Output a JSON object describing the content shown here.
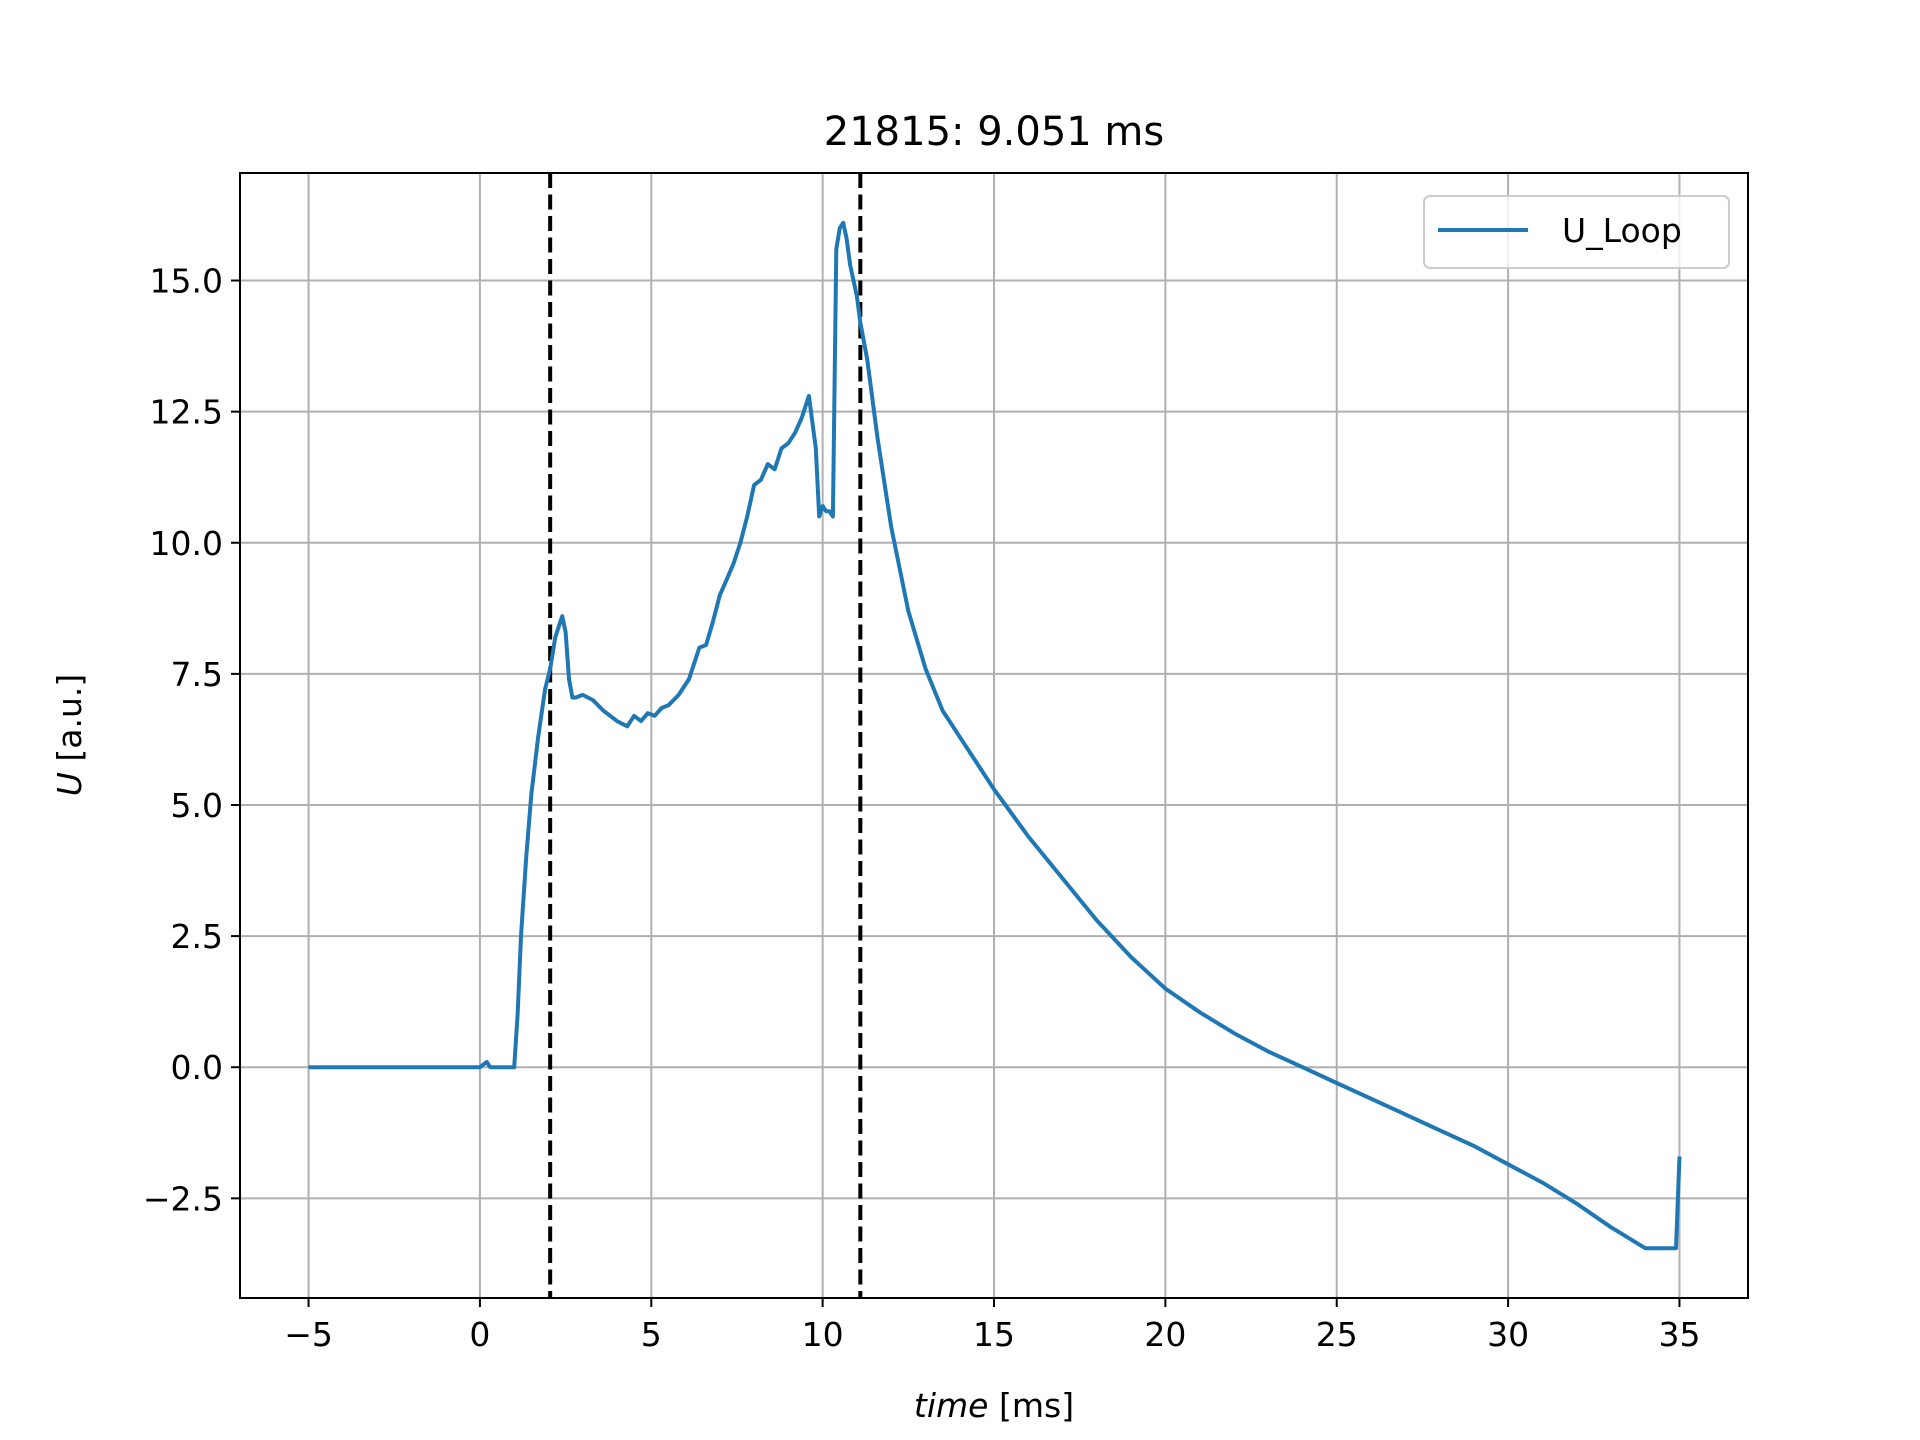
{
  "chart_data": {
    "type": "line",
    "title": "21815: 9.051 ms",
    "xlabel_italic": "time",
    "xlabel_unit": " [ms]",
    "ylabel_italic": "U",
    "ylabel_unit": " [a.u.]",
    "xlim": [
      -7,
      37
    ],
    "ylim": [
      -4.4,
      17.05
    ],
    "xticks": [
      -5,
      0,
      5,
      10,
      15,
      20,
      25,
      30,
      35
    ],
    "xtick_labels": [
      "−5",
      "0",
      "5",
      "10",
      "15",
      "20",
      "25",
      "30",
      "35"
    ],
    "yticks": [
      -2.5,
      0.0,
      2.5,
      5.0,
      7.5,
      10.0,
      12.5,
      15.0
    ],
    "ytick_labels": [
      "−2.5",
      "0.0",
      "2.5",
      "5.0",
      "7.5",
      "10.0",
      "12.5",
      "15.0"
    ],
    "grid": true,
    "legend_position": "top-right",
    "vlines": [
      2.05,
      11.1
    ],
    "series": [
      {
        "name": "U_Loop",
        "color": "#1f77b4",
        "x": [
          -5,
          -1,
          0,
          0.1,
          0.2,
          0.3,
          1.0,
          1.1,
          1.2,
          1.35,
          1.5,
          1.7,
          1.9,
          2.05,
          2.2,
          2.4,
          2.5,
          2.6,
          2.7,
          2.8,
          3.0,
          3.3,
          3.6,
          4.0,
          4.3,
          4.5,
          4.7,
          4.9,
          5.1,
          5.3,
          5.5,
          5.8,
          6.1,
          6.4,
          6.6,
          6.8,
          7.0,
          7.2,
          7.4,
          7.6,
          7.8,
          8.0,
          8.2,
          8.4,
          8.6,
          8.8,
          9.0,
          9.2,
          9.4,
          9.6,
          9.8,
          9.9,
          10.0,
          10.1,
          10.2,
          10.3,
          10.4,
          10.5,
          10.6,
          10.7,
          10.8,
          10.9,
          11.0,
          11.1,
          11.3,
          11.6,
          12.0,
          12.5,
          13.0,
          13.5,
          14.0,
          15.0,
          16.0,
          17.0,
          18.0,
          19.0,
          20.0,
          21.0,
          22.0,
          23.0,
          24.0,
          25.0,
          26.0,
          27.0,
          28.0,
          29.0,
          30.0,
          31.0,
          32.0,
          33.0,
          34.0,
          34.9,
          35.0
        ],
        "y": [
          0,
          0,
          0,
          0.05,
          0.1,
          0,
          0,
          1.0,
          2.5,
          4.0,
          5.2,
          6.3,
          7.2,
          7.6,
          8.2,
          8.6,
          8.3,
          7.4,
          7.05,
          7.05,
          7.1,
          7.0,
          6.8,
          6.6,
          6.5,
          6.7,
          6.6,
          6.75,
          6.7,
          6.85,
          6.9,
          7.1,
          7.4,
          8.0,
          8.05,
          8.5,
          9.0,
          9.3,
          9.6,
          10.0,
          10.5,
          11.1,
          11.2,
          11.5,
          11.4,
          11.8,
          11.9,
          12.1,
          12.4,
          12.8,
          11.8,
          10.5,
          10.7,
          10.6,
          10.6,
          10.5,
          15.6,
          16.0,
          16.1,
          15.8,
          15.3,
          15.0,
          14.7,
          14.2,
          13.5,
          12.0,
          10.3,
          8.7,
          7.6,
          6.8,
          6.3,
          5.3,
          4.4,
          3.6,
          2.8,
          2.1,
          1.5,
          1.05,
          0.65,
          0.3,
          0.0,
          -0.3,
          -0.6,
          -0.9,
          -1.2,
          -1.5,
          -1.85,
          -2.2,
          -2.6,
          -3.05,
          -3.45,
          -3.45,
          -1.7
        ]
      }
    ]
  }
}
